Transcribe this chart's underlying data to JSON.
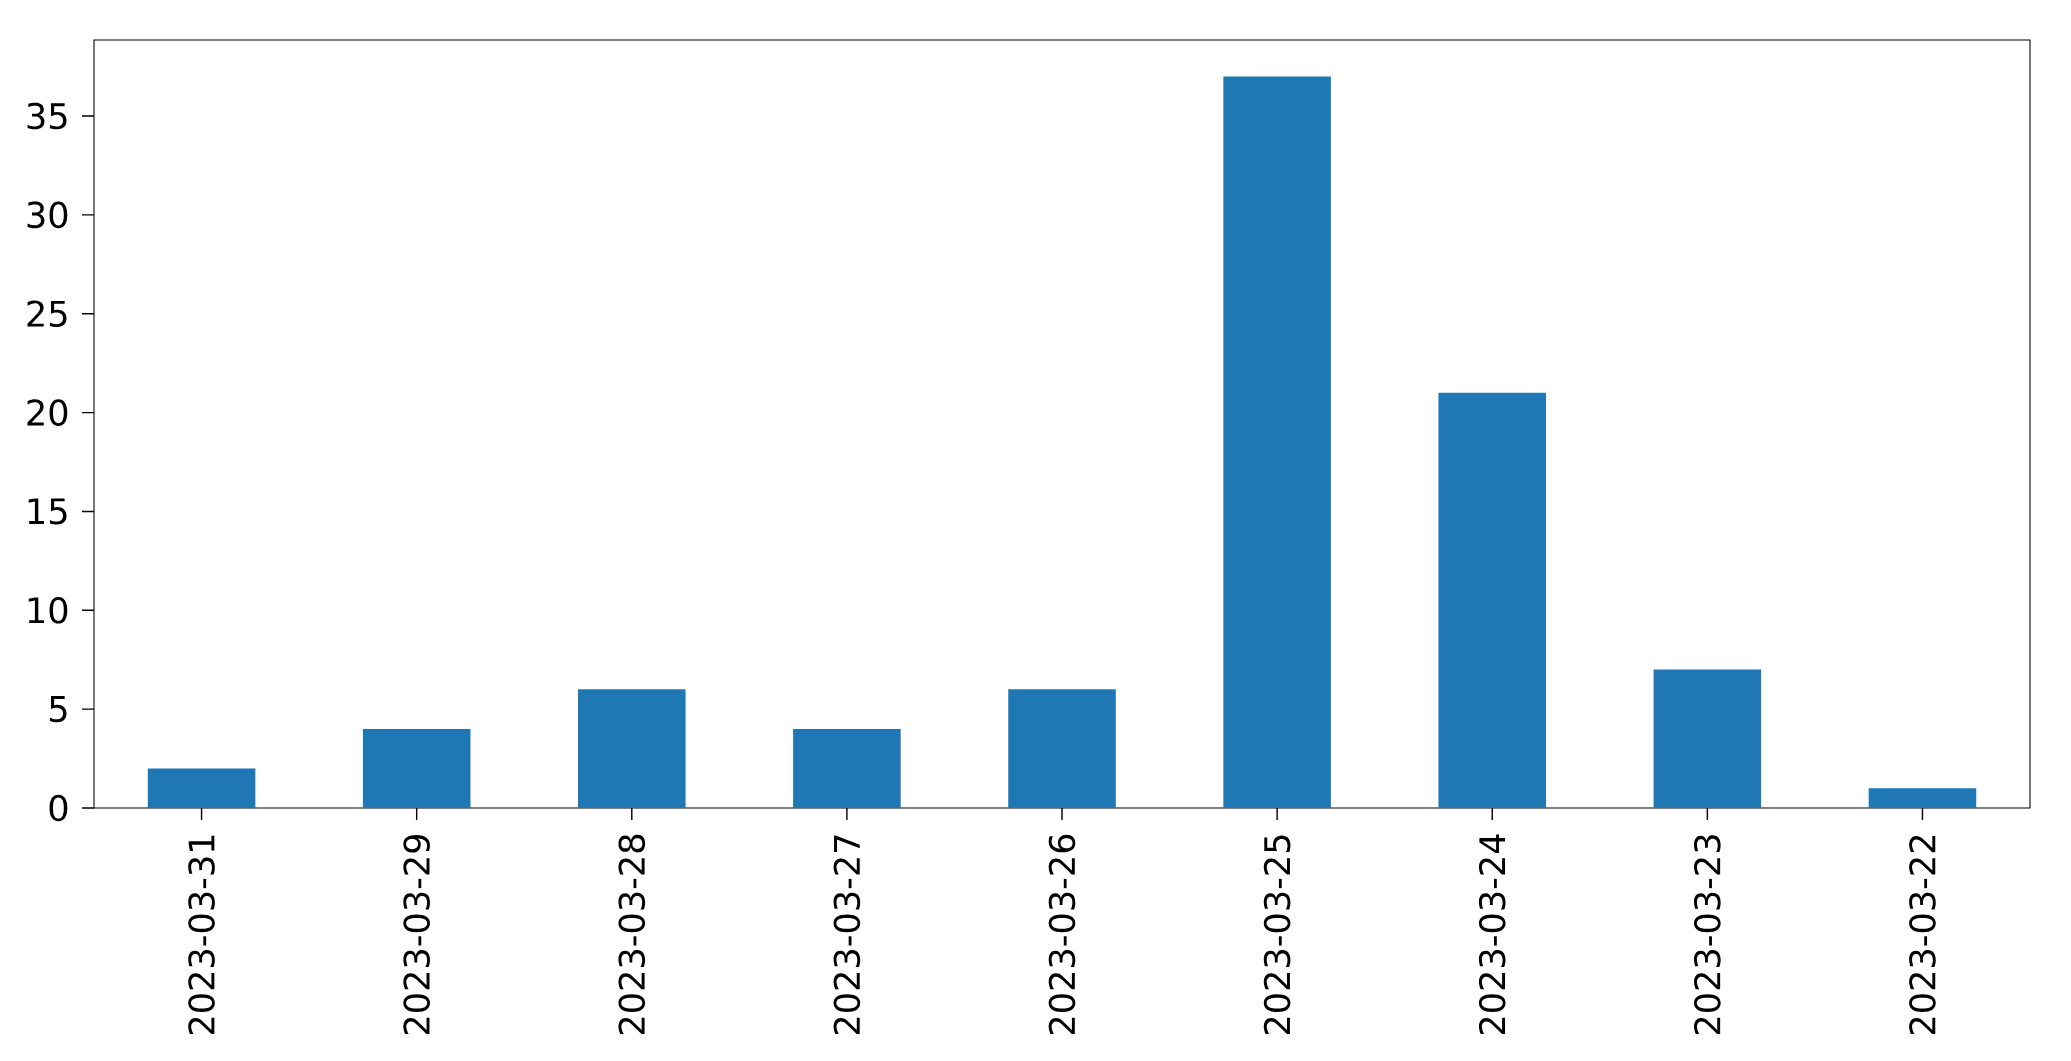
{
  "chart_data": {
    "type": "bar",
    "categories": [
      "2023-03-31",
      "2023-03-29",
      "2023-03-28",
      "2023-03-27",
      "2023-03-26",
      "2023-03-25",
      "2023-03-24",
      "2023-03-23",
      "2023-03-22"
    ],
    "values": [
      2,
      4,
      6,
      4,
      6,
      37,
      21,
      7,
      1
    ],
    "color": "#1f77b4",
    "ylim": [
      0,
      38.85
    ],
    "yticks": [
      0,
      5,
      10,
      15,
      20,
      25,
      30,
      35
    ]
  }
}
